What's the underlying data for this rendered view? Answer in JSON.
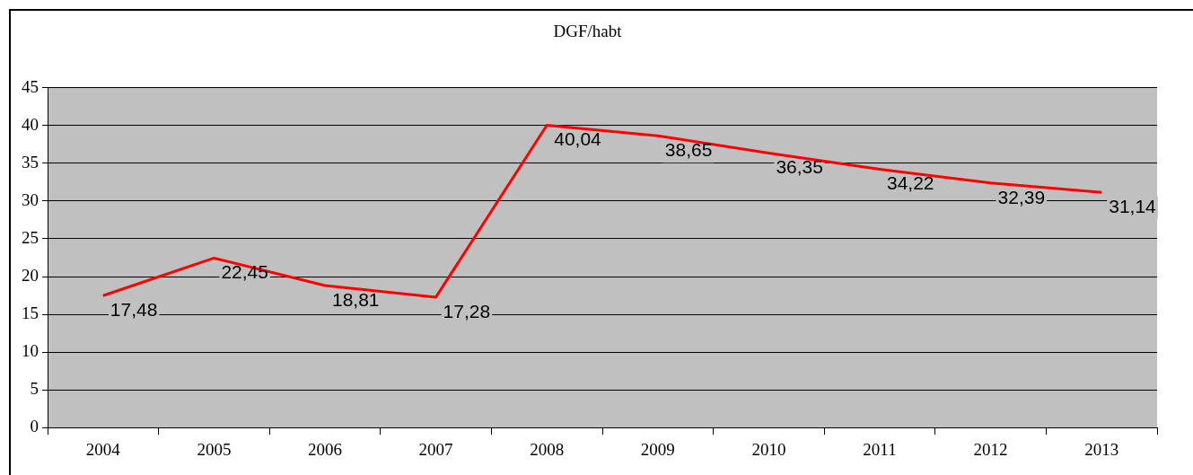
{
  "chart_data": {
    "type": "line",
    "title": "DGF/habt",
    "categories": [
      "2004",
      "2005",
      "2006",
      "2007",
      "2008",
      "2009",
      "2010",
      "2011",
      "2012",
      "2013"
    ],
    "series": [
      {
        "color": "#ff0000",
        "values": [
          17.48,
          22.45,
          18.81,
          17.28,
          40.04,
          38.65,
          36.35,
          34.22,
          32.39,
          31.14
        ],
        "value_labels": [
          "17,48",
          "22,45",
          "18,81",
          "17,28",
          "40,04",
          "38,65",
          "36,35",
          "34,22",
          "32,39",
          "31,14"
        ]
      }
    ],
    "ylim": [
      0,
      45
    ],
    "yticks": [
      0,
      5,
      10,
      15,
      20,
      25,
      30,
      35,
      40,
      45
    ],
    "grid": "y",
    "marker": "none",
    "line_style": "solid"
  }
}
